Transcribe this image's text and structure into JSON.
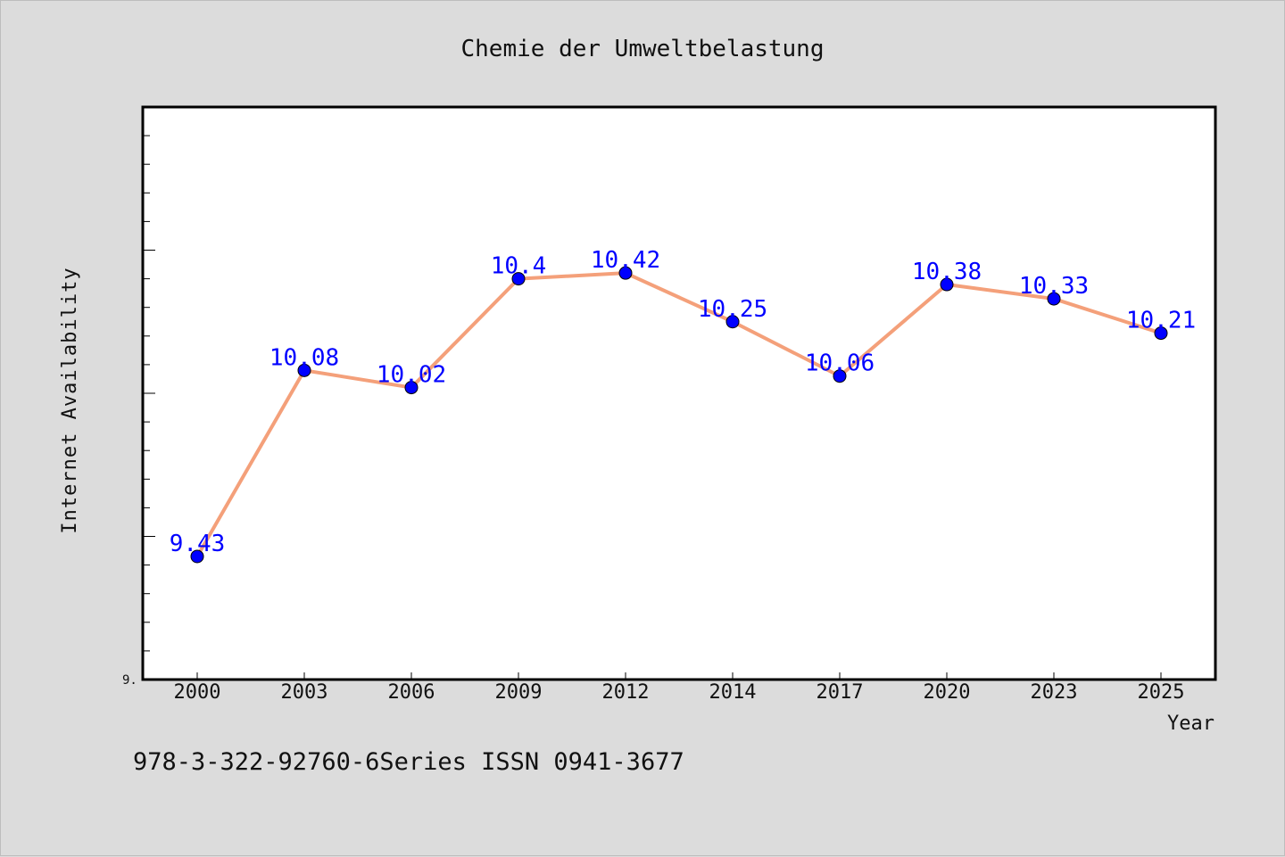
{
  "chart_data": {
    "type": "line",
    "title": "Chemie der Umweltbelastung",
    "xlabel": "Year",
    "ylabel": "Internet Availability",
    "categories": [
      "2000",
      "2003",
      "2006",
      "2009",
      "2012",
      "2014",
      "2017",
      "2020",
      "2023",
      "2025"
    ],
    "series": [
      {
        "values": [
          9.43,
          10.08,
          10.02,
          10.4,
          10.42,
          10.25,
          10.06,
          10.38,
          10.33,
          10.21
        ],
        "labels": [
          "9.43",
          "10.08",
          "10.02",
          "10.4",
          "10.42",
          "10.25",
          "10.06",
          "10.38",
          "10.33",
          "10.21"
        ],
        "line_color": "#f4a07a",
        "marker_color": "#0000ff",
        "label_color": "#0000ff"
      }
    ],
    "ylim": [
      9.0,
      11.0
    ],
    "y_tick_label": "9.",
    "grid": false
  },
  "footer": {
    "text": "978-3-322-92760-6Series ISSN 0941-3677"
  },
  "colors": {
    "background": "#dcdcdc",
    "plot_background": "#ffffff",
    "axis": "#000000"
  }
}
